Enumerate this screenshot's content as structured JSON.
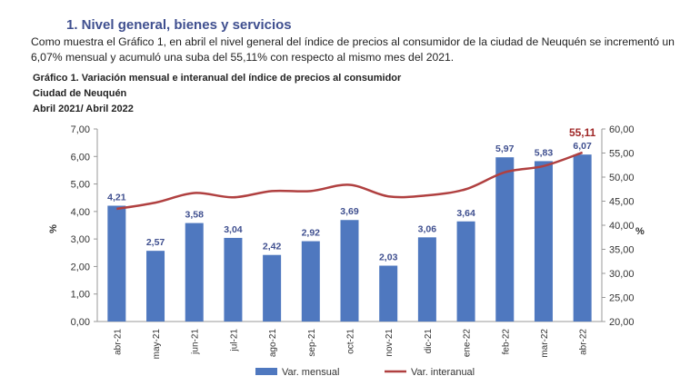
{
  "section_title": "1. Nivel general, bienes y servicios",
  "paragraph": "Como muestra el Gráfico 1, en abril el nivel general del índice de precios al consumidor de la ciudad de Neuquén se incrementó un 6,07% mensual y acumuló una suba del 55,11% con respecto al mismo mes del 2021.",
  "chart_data": {
    "type": "bar+line",
    "title": "Gráfico 1. Variación mensual e interanual del índice de precios al consumidor",
    "subtitle": "Ciudad de Neuquén",
    "period": "Abril 2021/ Abril 2022",
    "categories": [
      "abr-21",
      "may-21",
      "jun-21",
      "jul-21",
      "ago-21",
      "sep-21",
      "oct-21",
      "nov-21",
      "dic-21",
      "ene-22",
      "feb-22",
      "mar-22",
      "abr-22"
    ],
    "series": [
      {
        "name": "Var. mensual",
        "type": "bar",
        "axis": "left",
        "color": "#4f78bf",
        "values": [
          4.21,
          2.57,
          3.58,
          3.04,
          2.42,
          2.92,
          3.69,
          2.03,
          3.06,
          3.64,
          5.97,
          5.83,
          6.07
        ],
        "labels": [
          "4,21",
          "2,57",
          "3,58",
          "3,04",
          "2,42",
          "2,92",
          "3,69",
          "2,03",
          "3,06",
          "3,64",
          "5,97",
          "5,83",
          "6,07"
        ]
      },
      {
        "name": "Var. interanual",
        "type": "line",
        "axis": "right",
        "color": "#b04040",
        "values": [
          43.4,
          44.7,
          46.7,
          45.8,
          47.1,
          47.1,
          48.4,
          46.0,
          46.2,
          47.5,
          51.0,
          52.3,
          55.11
        ],
        "last_label": "55,11"
      }
    ],
    "ylabel_left": "%",
    "ylabel_right": "%",
    "ylim_left": [
      0,
      7
    ],
    "ylim_right": [
      20,
      60
    ],
    "yticks_left": [
      "0,00",
      "1,00",
      "2,00",
      "3,00",
      "4,00",
      "5,00",
      "6,00",
      "7,00"
    ],
    "yticks_right": [
      "20,00",
      "25,00",
      "30,00",
      "35,00",
      "40,00",
      "45,00",
      "50,00",
      "55,00",
      "60,00"
    ],
    "grid": false,
    "legend": "bottom"
  }
}
